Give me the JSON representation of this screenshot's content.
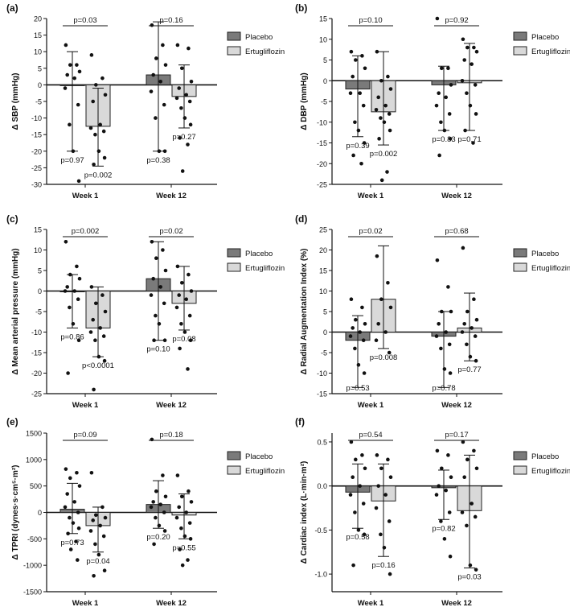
{
  "legend": {
    "placebo": "Placebo",
    "ertugliflozin": "Ertugliflozin"
  },
  "colors": {
    "placebo": "#7a7a7a",
    "ertugliflozin": "#d9d9d9",
    "ink": "#111111"
  },
  "chart_data": [
    {
      "type": "bar",
      "panel": "(a)",
      "ylabel": "Δ SBP (mmHg)",
      "ylim": [
        -30,
        20
      ],
      "yticks": [
        20,
        15,
        10,
        5,
        0,
        -5,
        -10,
        -15,
        -20,
        -25,
        -30
      ],
      "categories": [
        "Week 1",
        "Week 12"
      ],
      "series": [
        {
          "name": "Placebo",
          "values": [
            0,
            3
          ],
          "err_low": [
            -20,
            -20
          ],
          "err_high": [
            10,
            19
          ],
          "points": [
            [
              12,
              6,
              6,
              4,
              3,
              2,
              -1,
              -6,
              -12,
              -20,
              -29
            ],
            [
              18,
              12,
              8,
              6,
              3,
              1,
              -2,
              -6,
              -10,
              -20,
              -20
            ]
          ]
        },
        {
          "name": "Ertugliflozin",
          "values": [
            -12.5,
            -3.5
          ],
          "err_low": [
            -24.5,
            -13
          ],
          "err_high": [
            -1,
            6
          ],
          "points": [
            [
              9,
              2,
              0,
              -3,
              -5,
              -12,
              -13,
              -14,
              -15,
              -20,
              -22,
              -24
            ],
            [
              12,
              11,
              5,
              1,
              -1,
              -3,
              -4,
              -5,
              -7,
              -10,
              -12,
              -16,
              -18,
              -26
            ]
          ]
        }
      ],
      "pairwise_p": [
        "p=0.03",
        "p=0.16"
      ],
      "within_p": [
        [
          "p=0.97",
          "p=0.38"
        ],
        [
          "p=0.002",
          "p=0.27"
        ]
      ]
    },
    {
      "type": "bar",
      "panel": "(b)",
      "ylabel": "Δ DBP (mmHg)",
      "ylim": [
        -25,
        15
      ],
      "yticks": [
        15,
        10,
        5,
        0,
        -5,
        -10,
        -15,
        -20,
        -25
      ],
      "categories": [
        "Week 1",
        "Week 12"
      ],
      "series": [
        {
          "name": "Placebo",
          "values": [
            -2,
            -1
          ],
          "err_low": [
            -13.5,
            -12
          ],
          "err_high": [
            6,
            3.5
          ],
          "points": [
            [
              7,
              6,
              5,
              3,
              1,
              -3,
              -3,
              -6,
              -10,
              -12,
              -15,
              -18,
              -20
            ],
            [
              15,
              3,
              3,
              -1,
              -3,
              -4,
              -6,
              -8,
              -10,
              -12,
              -14,
              -18
            ]
          ]
        },
        {
          "name": "Ertugliflozin",
          "values": [
            -7.5,
            -0.5
          ],
          "err_low": [
            -15.5,
            -12
          ],
          "err_high": [
            7,
            9
          ],
          "points": [
            [
              7,
              1,
              0,
              -2,
              -4,
              -6,
              -7,
              -8,
              -9,
              -10,
              -12,
              -14,
              -22,
              -24
            ],
            [
              10,
              8,
              8,
              7,
              5,
              4,
              0,
              -1,
              -3,
              -6,
              -8,
              -12,
              -15
            ]
          ]
        }
      ],
      "pairwise_p": [
        "p=0.10",
        "p=0.92"
      ],
      "within_p": [
        [
          "p=0.39",
          "p=0.83"
        ],
        [
          "p=0.002",
          "p=0.71"
        ]
      ]
    },
    {
      "type": "bar",
      "panel": "(c)",
      "ylabel": "Δ Mean arterial pressure (mmHg)",
      "ylim": [
        -25,
        15
      ],
      "yticks": [
        15,
        10,
        5,
        0,
        -5,
        -10,
        -15,
        -20,
        -25
      ],
      "categories": [
        "Week 1",
        "Week 12"
      ],
      "series": [
        {
          "name": "Placebo",
          "values": [
            0,
            3
          ],
          "err_low": [
            -9,
            -12
          ],
          "err_high": [
            4,
            12
          ],
          "points": [
            [
              12,
              6,
              4,
              3,
              1,
              0,
              0,
              -2,
              -4,
              -8,
              -12,
              -20
            ],
            [
              12,
              10,
              8,
              5,
              3,
              1,
              -1,
              -3,
              -6,
              -8,
              -12,
              -12
            ]
          ]
        },
        {
          "name": "Ertugliflozin",
          "values": [
            -9,
            -3
          ],
          "err_low": [
            -16,
            -9.5
          ],
          "err_high": [
            1,
            6
          ],
          "points": [
            [
              1,
              -1,
              -3,
              -5,
              -7,
              -9,
              -10,
              -11,
              -12,
              -16,
              -17,
              -24
            ],
            [
              6,
              4,
              2,
              0,
              -1,
              -2,
              -4,
              -6,
              -8,
              -10,
              -12,
              -14,
              -19
            ]
          ]
        }
      ],
      "pairwise_p": [
        "p=0.002",
        "p=0.02"
      ],
      "within_p": [
        [
          "p=0.86",
          "p=0.10"
        ],
        [
          "p<0.0001",
          "p=0.08"
        ]
      ]
    },
    {
      "type": "bar",
      "panel": "(d)",
      "ylabel": "Δ Radial Augmentation Index (%)",
      "ylim": [
        -15,
        25
      ],
      "yticks": [
        25,
        20,
        15,
        10,
        5,
        0,
        -5,
        -10,
        -15
      ],
      "categories": [
        "Week 1",
        "Week 12"
      ],
      "series": [
        {
          "name": "Placebo",
          "values": [
            -2,
            -1
          ],
          "err_low": [
            -13.5,
            -13.5
          ],
          "err_high": [
            4,
            5
          ],
          "points": [
            [
              8,
              6,
              3,
              2,
              1,
              0,
              -1,
              -2,
              -4,
              -8,
              -10
            ],
            [
              17.5,
              11,
              5,
              5,
              2,
              0,
              -1,
              -3,
              -4,
              -9,
              -10
            ]
          ]
        },
        {
          "name": "Ertugliflozin",
          "values": [
            8,
            1
          ],
          "err_low": [
            -4,
            -7
          ],
          "err_high": [
            21,
            9.5
          ],
          "points": [
            [
              18.5,
              12,
              8,
              6,
              2,
              0,
              -2,
              -5
            ],
            [
              20.5,
              8,
              5,
              3,
              2,
              1,
              0,
              -1,
              -3,
              -6,
              -7
            ]
          ]
        }
      ],
      "pairwise_p": [
        "p=0.02",
        "p=0.68"
      ],
      "within_p": [
        [
          "p=0.53",
          "p=0.78"
        ],
        [
          "p=0.008",
          "p=0.77"
        ]
      ]
    },
    {
      "type": "bar",
      "panel": "(e)",
      "ylabel": "Δ TPRI (dynes·s·cm⁵·m²)",
      "ylim": [
        -1500,
        1500
      ],
      "yticks": [
        1500,
        1000,
        500,
        0,
        -500,
        -1000,
        -1500
      ],
      "categories": [
        "Week 1",
        "Week 12"
      ],
      "series": [
        {
          "name": "Placebo",
          "values": [
            60,
            150
          ],
          "err_low": [
            -400,
            -300
          ],
          "err_high": [
            550,
            600
          ],
          "points": [
            [
              820,
              750,
              650,
              500,
              350,
              200,
              100,
              0,
              -100,
              -200,
              -300,
              -400,
              -550,
              -700,
              -900
            ],
            [
              1380,
              700,
              400,
              300,
              200,
              150,
              100,
              0,
              -100,
              -250,
              -350,
              -600
            ]
          ]
        },
        {
          "name": "Ertugliflozin",
          "values": [
            -250,
            -50
          ],
          "err_low": [
            -750,
            -500
          ],
          "err_high": [
            100,
            350
          ],
          "points": [
            [
              750,
              100,
              -50,
              -100,
              -150,
              -250,
              -350,
              -450,
              -600,
              -800,
              -1100,
              -1200
            ],
            [
              700,
              400,
              300,
              200,
              100,
              0,
              -100,
              -200,
              -300,
              -450,
              -500,
              -700,
              -900,
              -1000
            ]
          ]
        }
      ],
      "pairwise_p": [
        "p=0.09",
        "p=0.18"
      ],
      "within_p": [
        [
          "p=0.73",
          "p=0.20"
        ],
        [
          "p=0.04",
          "p=0.55"
        ]
      ]
    },
    {
      "type": "bar",
      "panel": "(f)",
      "ylabel": "Δ Cardiac index (L·min·m²)",
      "ylim": [
        -1.2,
        0.6
      ],
      "yticks": [
        0.5,
        0.0,
        -0.5,
        -1.0
      ],
      "ytick_labels": [
        "0.5",
        "0.0",
        "-0.5",
        "-1.0"
      ],
      "categories": [
        "Week 1",
        "Week 12"
      ],
      "series": [
        {
          "name": "Placebo",
          "values": [
            -0.07,
            -0.02
          ],
          "err_low": [
            -0.48,
            -0.38
          ],
          "err_high": [
            0.25,
            0.18
          ],
          "points": [
            [
              0.5,
              0.35,
              0.3,
              0.2,
              0.1,
              0,
              -0.1,
              -0.2,
              -0.3,
              -0.5,
              -0.55,
              -0.9
            ],
            [
              0.4,
              0.35,
              0.2,
              0.1,
              0,
              -0.05,
              -0.1,
              -0.3,
              -0.4,
              -0.6,
              -0.8
            ]
          ]
        },
        {
          "name": "Ertugliflozin",
          "values": [
            -0.17,
            -0.28
          ],
          "err_low": [
            -0.8,
            -0.93
          ],
          "err_high": [
            0.25,
            0.35
          ],
          "points": [
            [
              0.35,
              0.3,
              0.2,
              0.1,
              0,
              -0.1,
              -0.25,
              -0.4,
              -0.55,
              -0.7,
              -1.0
            ],
            [
              0.5,
              0.4,
              0.3,
              0.2,
              0.1,
              -0.2,
              -0.3,
              -0.35,
              -0.45,
              -0.9,
              -0.95
            ]
          ]
        }
      ],
      "pairwise_p": [
        "p=0.54",
        "p=0.17"
      ],
      "within_p": [
        [
          "p=0.58",
          "p=0.82"
        ],
        [
          "p=0.16",
          "p=0.03"
        ]
      ]
    }
  ]
}
